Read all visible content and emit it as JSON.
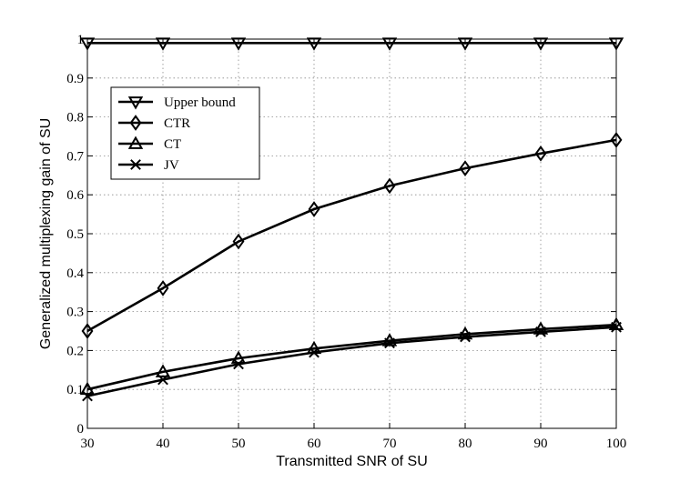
{
  "chart_data": {
    "type": "line",
    "xlabel": "Transmitted SNR of SU",
    "ylabel": "Generalized multiplexing gain of SU",
    "xlim": [
      30,
      100
    ],
    "ylim": [
      0,
      1
    ],
    "xticks": [
      30,
      40,
      50,
      60,
      70,
      80,
      90,
      100
    ],
    "yticks": [
      0,
      0.1,
      0.2,
      0.3,
      0.4,
      0.5,
      0.6,
      0.7,
      0.8,
      0.9,
      1
    ],
    "ytick_labels": [
      "0",
      "0.1",
      "0.2",
      "0.3",
      "0.4",
      "0.5",
      "0.6",
      "0.7",
      "0.8",
      "0.9",
      "1"
    ],
    "grid": true,
    "legend_position": "upper-left",
    "x": [
      30,
      40,
      50,
      60,
      70,
      80,
      90,
      100
    ],
    "series": [
      {
        "name": "Upper bound",
        "marker": "triangle-down",
        "values": [
          0.99,
          0.99,
          0.99,
          0.99,
          0.99,
          0.99,
          0.99,
          0.99
        ]
      },
      {
        "name": "CTR",
        "marker": "diamond",
        "values": [
          0.25,
          0.36,
          0.48,
          0.563,
          0.623,
          0.668,
          0.706,
          0.741
        ]
      },
      {
        "name": "CT",
        "marker": "triangle-up",
        "values": [
          0.1,
          0.145,
          0.18,
          0.205,
          0.225,
          0.242,
          0.255,
          0.266
        ]
      },
      {
        "name": "JV",
        "marker": "x",
        "values": [
          0.083,
          0.125,
          0.165,
          0.195,
          0.219,
          0.235,
          0.248,
          0.26
        ]
      }
    ]
  }
}
